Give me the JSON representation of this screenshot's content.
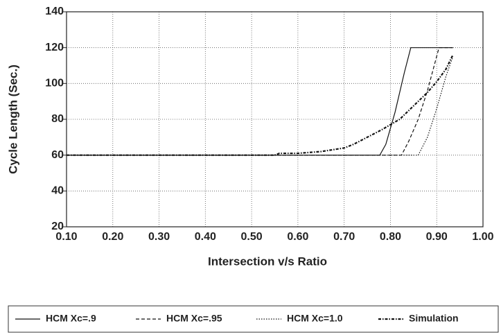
{
  "chart_data": {
    "type": "line",
    "xlabel": "Intersection v/s Ratio",
    "ylabel": "Cycle Length (Sec.)",
    "xlim": [
      0.1,
      1.0
    ],
    "ylim": [
      20,
      140
    ],
    "xticks": [
      {
        "value": 0.1,
        "label": "0.10"
      },
      {
        "value": 0.2,
        "label": "0.20"
      },
      {
        "value": 0.3,
        "label": "0.30"
      },
      {
        "value": 0.4,
        "label": "0.40"
      },
      {
        "value": 0.5,
        "label": "0.50"
      },
      {
        "value": 0.6,
        "label": "0.60"
      },
      {
        "value": 0.7,
        "label": "0.70"
      },
      {
        "value": 0.8,
        "label": "0.80"
      },
      {
        "value": 0.9,
        "label": "0.90"
      },
      {
        "value": 1.0,
        "label": "1.00"
      }
    ],
    "yticks": [
      20,
      40,
      60,
      80,
      100,
      120,
      140
    ],
    "grid": true,
    "legend": "bottom",
    "series": [
      {
        "name": "HCM Xc=.9",
        "color": "#111111",
        "style": "solid",
        "x": [
          0.1,
          0.777,
          0.79,
          0.81,
          0.83,
          0.844,
          0.935
        ],
        "values": [
          60,
          60,
          66,
          84,
          106,
          120,
          120
        ]
      },
      {
        "name": "HCM Xc=.95",
        "color": "#111111",
        "style": "dashed",
        "x": [
          0.1,
          0.824,
          0.84,
          0.86,
          0.88,
          0.905,
          0.935
        ],
        "values": [
          60,
          60,
          68,
          80,
          96,
          120,
          120
        ]
      },
      {
        "name": "HCM Xc=1.0",
        "color": "#111111",
        "style": "dotted",
        "x": [
          0.1,
          0.86,
          0.88,
          0.9,
          0.92,
          0.935
        ],
        "values": [
          60,
          60,
          70,
          86,
          104,
          115
        ]
      },
      {
        "name": "Simulation",
        "color": "#111111",
        "style": "dashdot",
        "x": [
          0.1,
          0.55,
          0.56,
          0.6,
          0.65,
          0.7,
          0.72,
          0.75,
          0.78,
          0.8,
          0.82,
          0.84,
          0.86,
          0.88,
          0.9,
          0.92,
          0.935
        ],
        "values": [
          60,
          60,
          61,
          61,
          62,
          64,
          66,
          70,
          74,
          77,
          80,
          85,
          90,
          95,
          101,
          108,
          116
        ]
      }
    ]
  }
}
